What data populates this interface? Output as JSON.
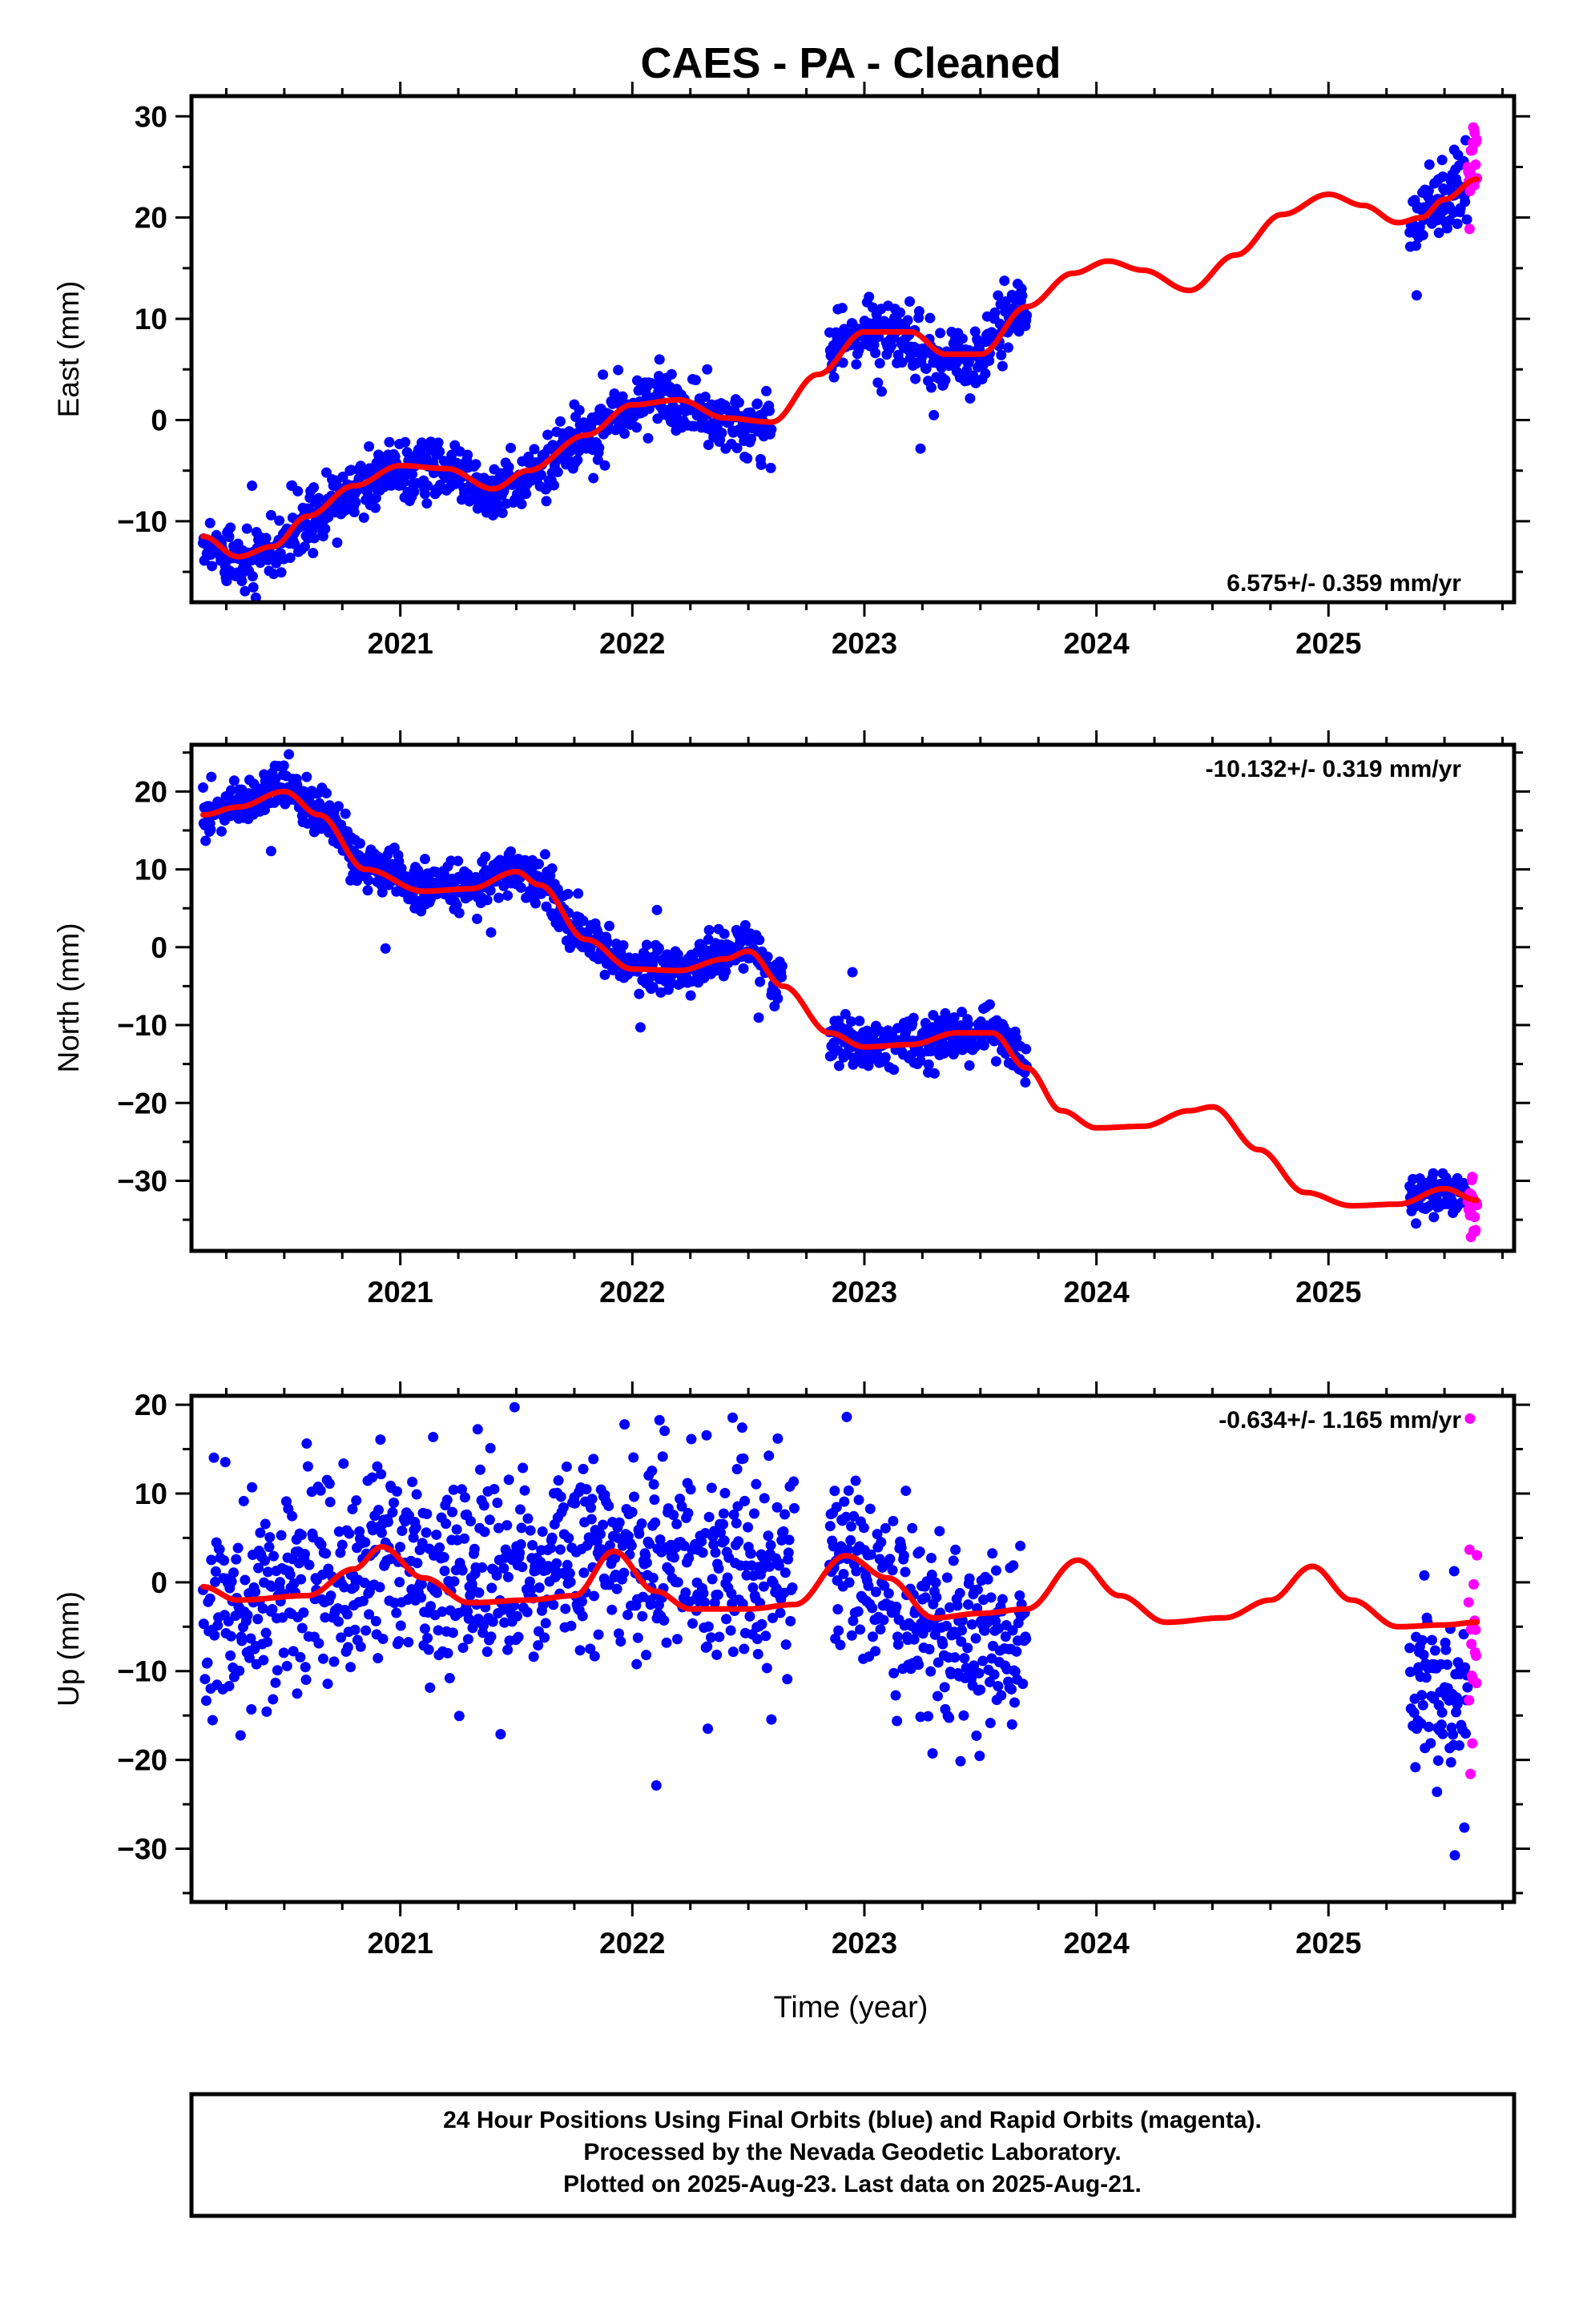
{
  "figure": {
    "title": "CAES  - PA - Cleaned",
    "xlabel": "Time (year)",
    "footer": [
      "24 Hour Positions Using Final Orbits (blue) and Rapid Orbits (magenta).",
      "Processed by the Nevada Geodetic Laboratory.",
      "Plotted on 2025-Aug-23. Last data on 2025-Aug-21."
    ],
    "colors": {
      "final_orbits": "#0000ff",
      "rapid_orbits": "#ff00ff",
      "model": "#ff0000"
    }
  },
  "chart_data": [
    {
      "type": "scatter",
      "ylabel": "East (mm)",
      "rate_label": "6.575+/- 0.359 mm/yr",
      "rate_position": "bottom-right",
      "xlim": [
        2020.1,
        2025.8
      ],
      "ylim": [
        -18,
        32
      ],
      "xticks": [
        2021,
        2022,
        2023,
        2024,
        2025
      ],
      "yticks": [
        -10,
        0,
        10,
        20,
        30
      ],
      "gaps": [
        [
          2023.7,
          2025.35
        ]
      ],
      "final_range": [
        2020.15,
        2025.6
      ],
      "rapid_range": [
        2025.6,
        2025.64
      ],
      "model_curve": {
        "x": [
          2020.15,
          2020.3,
          2020.45,
          2020.6,
          2020.8,
          2021.0,
          2021.2,
          2021.4,
          2021.55,
          2021.8,
          2022.0,
          2022.2,
          2022.4,
          2022.6,
          2022.8,
          2023.0,
          2023.2,
          2023.35,
          2023.5,
          2023.7,
          2023.9,
          2024.05,
          2024.2,
          2024.4,
          2024.6,
          2024.8,
          2025.0,
          2025.15,
          2025.3,
          2025.4,
          2025.5,
          2025.64
        ],
        "y": [
          -11.5,
          -13.5,
          -12.5,
          -9.5,
          -6.5,
          -4.5,
          -4.8,
          -6.8,
          -5.0,
          -1.5,
          1.5,
          2.0,
          0.2,
          -0.2,
          4.5,
          8.7,
          8.7,
          6.5,
          6.5,
          11.2,
          14.5,
          15.7,
          14.8,
          12.8,
          16.3,
          20.3,
          22.3,
          21.2,
          19.5,
          20.0,
          21.8,
          23.8
        ]
      },
      "final_segments": [
        {
          "x": [
            2020.15,
            2020.3,
            2020.45,
            2020.6,
            2020.8,
            2021.0,
            2021.2,
            2021.4,
            2021.55,
            2021.8,
            2022.0,
            2022.2,
            2022.4,
            2022.6
          ],
          "y": [
            -11.8,
            -13.8,
            -12.8,
            -9.8,
            -6.8,
            -4.8,
            -5.1,
            -7.1,
            -5.3,
            -1.8,
            1.2,
            1.7,
            -0.1,
            -0.5
          ],
          "spread": 1.4
        },
        {
          "x": [
            2022.85,
            2023.0,
            2023.15,
            2023.3,
            2023.45,
            2023.7
          ],
          "y": [
            7.0,
            8.7,
            8.0,
            6.3,
            6.0,
            11.0
          ],
          "spread": 1.5
        },
        {
          "x": [
            2025.35,
            2025.45,
            2025.6
          ],
          "y": [
            19.6,
            21.0,
            22.8
          ],
          "spread": 1.6
        }
      ],
      "rapid_segments": [
        {
          "x": [
            2025.6,
            2025.64
          ],
          "y": [
            25.0,
            26.0
          ],
          "spread": 2.5
        }
      ]
    },
    {
      "type": "scatter",
      "ylabel": "North (mm)",
      "rate_label": "-10.132+/- 0.319 mm/yr",
      "rate_position": "top-right",
      "xlim": [
        2020.1,
        2025.8
      ],
      "ylim": [
        -39,
        26
      ],
      "xticks": [
        2021,
        2022,
        2023,
        2024,
        2025
      ],
      "yticks": [
        -30,
        -20,
        -10,
        0,
        10,
        20
      ],
      "gaps": [
        [
          2023.7,
          2025.35
        ]
      ],
      "final_range": [
        2020.15,
        2025.6
      ],
      "rapid_range": [
        2025.6,
        2025.64
      ],
      "model_curve": {
        "x": [
          2020.15,
          2020.3,
          2020.5,
          2020.65,
          2020.85,
          2021.1,
          2021.3,
          2021.5,
          2021.6,
          2021.8,
          2022.0,
          2022.2,
          2022.4,
          2022.5,
          2022.65,
          2022.85,
          2023.0,
          2023.2,
          2023.4,
          2023.55,
          2023.7,
          2023.85,
          2024.0,
          2024.2,
          2024.4,
          2024.5,
          2024.7,
          2024.9,
          2025.1,
          2025.3,
          2025.5,
          2025.64
        ],
        "y": [
          17.0,
          18.0,
          20.0,
          17.0,
          10.0,
          7.2,
          7.5,
          9.7,
          8.0,
          1.0,
          -2.8,
          -3.0,
          -1.5,
          -0.5,
          -5.0,
          -11.0,
          -12.8,
          -12.5,
          -11.0,
          -11.0,
          -15.5,
          -21.0,
          -23.2,
          -23.0,
          -21.0,
          -20.5,
          -26.0,
          -31.5,
          -33.2,
          -33.0,
          -31.0,
          -32.5
        ]
      },
      "final_segments": [
        {
          "x": [
            2020.15,
            2020.3,
            2020.5,
            2020.65,
            2020.85,
            2021.1,
            2021.3,
            2021.5,
            2021.6,
            2021.8,
            2022.0,
            2022.2,
            2022.4,
            2022.5,
            2022.65
          ],
          "y": [
            17.2,
            18.5,
            20.5,
            17.5,
            10.3,
            7.4,
            7.8,
            10.0,
            8.3,
            1.0,
            -2.8,
            -2.7,
            -1.0,
            0.0,
            -4.5
          ],
          "spread": 1.5
        },
        {
          "x": [
            2022.85,
            2023.0,
            2023.2,
            2023.4,
            2023.55,
            2023.7
          ],
          "y": [
            -11.0,
            -12.5,
            -12.2,
            -11.0,
            -10.0,
            -14.5
          ],
          "spread": 1.6
        },
        {
          "x": [
            2025.35,
            2025.5,
            2025.6
          ],
          "y": [
            -32.0,
            -31.5,
            -32.0
          ],
          "spread": 1.3
        }
      ],
      "rapid_segments": [
        {
          "x": [
            2025.6,
            2025.64
          ],
          "y": [
            -32.0,
            -34.0
          ],
          "spread": 2.2
        }
      ]
    },
    {
      "type": "scatter",
      "ylabel": "Up (mm)",
      "rate_label": "-0.634+/- 1.165 mm/yr",
      "rate_position": "top-right",
      "xlim": [
        2020.1,
        2025.8
      ],
      "ylim": [
        -36,
        21
      ],
      "xticks": [
        2021,
        2022,
        2023,
        2024,
        2025
      ],
      "yticks": [
        -30,
        -20,
        -10,
        0,
        10,
        20
      ],
      "gaps": [
        [
          2023.7,
          2025.35
        ]
      ],
      "final_range": [
        2020.15,
        2025.6
      ],
      "rapid_range": [
        2025.6,
        2025.64
      ],
      "model_curve": {
        "x": [
          2020.15,
          2020.3,
          2020.6,
          2020.8,
          2020.92,
          2021.1,
          2021.3,
          2021.55,
          2021.75,
          2021.92,
          2022.1,
          2022.25,
          2022.5,
          2022.7,
          2022.92,
          2023.1,
          2023.3,
          2023.5,
          2023.7,
          2023.92,
          2024.1,
          2024.3,
          2024.55,
          2024.75,
          2024.93,
          2025.1,
          2025.3,
          2025.5,
          2025.64
        ],
        "y": [
          -0.5,
          -2.0,
          -1.5,
          1.5,
          4.0,
          0.5,
          -2.3,
          -2.0,
          -1.5,
          3.5,
          -1.0,
          -3.0,
          -3.0,
          -2.5,
          3.0,
          0.5,
          -4.0,
          -3.5,
          -3.0,
          2.5,
          -1.5,
          -4.5,
          -4.0,
          -2.0,
          1.8,
          -2.0,
          -5.0,
          -4.8,
          -4.5
        ]
      },
      "final_segments": [
        {
          "x": [
            2020.15,
            2020.4,
            2020.7,
            2021.0,
            2021.3,
            2021.6,
            2021.9,
            2022.2,
            2022.5,
            2022.7
          ],
          "y": [
            -2.5,
            -1.5,
            0.0,
            2.5,
            1.0,
            1.0,
            4.0,
            1.0,
            2.0,
            1.5
          ],
          "spread": 5.5
        },
        {
          "x": [
            2022.85,
            2023.0,
            2023.2,
            2023.4,
            2023.7
          ],
          "y": [
            4.5,
            2.0,
            -5.0,
            -7.0,
            -6.5
          ],
          "spread": 5.0
        },
        {
          "x": [
            2025.35,
            2025.6
          ],
          "y": [
            -12.0,
            -12.0
          ],
          "spread": 5.5
        }
      ],
      "rapid_segments": [
        {
          "x": [
            2025.6,
            2025.64
          ],
          "y": [
            -7.0,
            -8.0
          ],
          "spread": 5.0
        }
      ]
    }
  ]
}
